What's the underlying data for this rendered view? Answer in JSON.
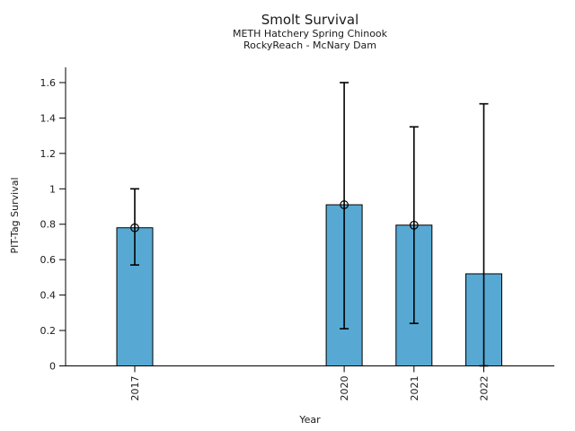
{
  "chart_data": {
    "type": "bar",
    "title": "Smolt Survival",
    "subtitle1": "METH Hatchery Spring Chinook",
    "subtitle2": "RockyReach - McNary Dam",
    "xlabel": "Year",
    "ylabel": "PIT-Tag Survival",
    "categories": [
      "2017",
      "2020",
      "2021",
      "2022"
    ],
    "x_numeric": [
      2017,
      2020,
      2021,
      2022
    ],
    "values": [
      0.78,
      0.91,
      0.795,
      0.52
    ],
    "error_low": [
      0.57,
      0.21,
      0.24,
      0.0
    ],
    "error_high": [
      1.0,
      1.6,
      1.35,
      1.48
    ],
    "point_markers": [
      true,
      true,
      true,
      false
    ],
    "ytick_labels": [
      "0",
      "0.2",
      "0.4",
      "0.6",
      "0.8",
      "1",
      "1.2",
      "1.4",
      "1.6"
    ],
    "ytick_values": [
      0,
      0.2,
      0.4,
      0.6,
      0.8,
      1.0,
      1.2,
      1.4,
      1.6
    ],
    "ylim": [
      0,
      1.69
    ],
    "xlim": [
      2016,
      2023
    ],
    "bar_color": "#57A9D3",
    "edge_color": "#000000",
    "grid": false,
    "legend_position": "none"
  }
}
